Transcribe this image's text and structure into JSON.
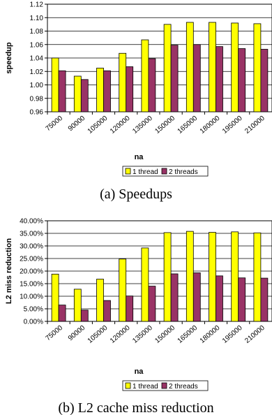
{
  "chart_data": [
    {
      "type": "bar",
      "categories": [
        "75000",
        "90000",
        "105000",
        "120000",
        "135000",
        "150000",
        "165000",
        "180000",
        "195000",
        "210000"
      ],
      "series": [
        {
          "name": "1 thread",
          "values": [
            1.04,
            1.013,
            1.025,
            1.047,
            1.067,
            1.09,
            1.093,
            1.093,
            1.092,
            1.091
          ],
          "color": "#ffff00"
        },
        {
          "name": "2 threads",
          "values": [
            1.021,
            1.008,
            1.021,
            1.027,
            1.039,
            1.059,
            1.06,
            1.057,
            1.054,
            1.053
          ],
          "color": "#993366"
        }
      ],
      "xlabel": "na",
      "ylabel": "speedup",
      "ylim": [
        0.96,
        1.12
      ],
      "yticks": [
        "0.96",
        "0.98",
        "1.00",
        "1.02",
        "1.04",
        "1.06",
        "1.08",
        "1.10",
        "1.12"
      ],
      "grid": true,
      "legend": "bottom",
      "caption": "(a) Speedups"
    },
    {
      "type": "bar",
      "categories": [
        "75000",
        "90000",
        "105000",
        "120000",
        "135000",
        "150000",
        "165000",
        "180000",
        "195000",
        "210000"
      ],
      "series": [
        {
          "name": "1 thread",
          "values": [
            18.8,
            12.8,
            16.8,
            24.8,
            29.2,
            35.3,
            35.8,
            35.4,
            35.6,
            35.2
          ],
          "color": "#ffff00"
        },
        {
          "name": "2 threads",
          "values": [
            6.5,
            4.5,
            8.3,
            10.1,
            14.0,
            18.9,
            19.3,
            18.1,
            17.3,
            17.2
          ],
          "color": "#993366"
        }
      ],
      "xlabel": "na",
      "ylabel": "L2 miss reduction",
      "ylim": [
        0,
        40
      ],
      "yticks": [
        "0.00%",
        "5.00%",
        "10.00%",
        "15.00%",
        "20.00%",
        "25.00%",
        "30.00%",
        "35.00%",
        "40.00%"
      ],
      "grid": true,
      "legend": "bottom",
      "caption": "(b) L2 cache miss reduction"
    }
  ]
}
